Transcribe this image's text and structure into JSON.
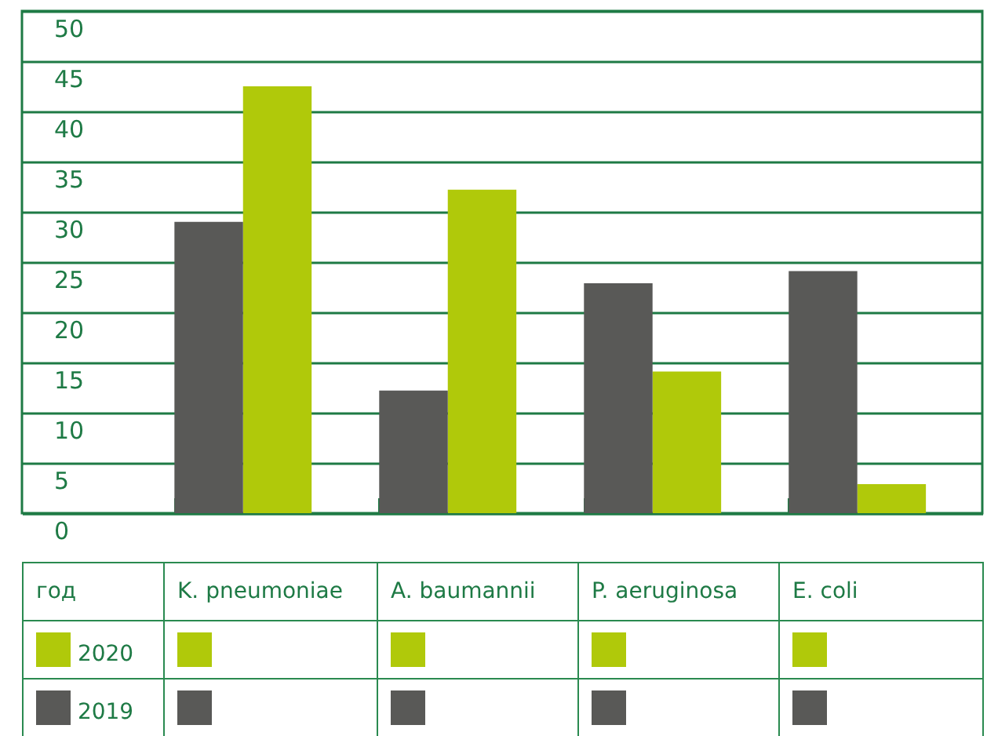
{
  "chart_data": {
    "type": "bar",
    "categories": [
      "K. pneumoniae",
      "A. baumannii",
      "P. aeruginosa",
      "E. coli"
    ],
    "series": [
      {
        "name": "2020",
        "color": "#b0c90a",
        "values": [
          42.5,
          32.2,
          14.1,
          2.9
        ]
      },
      {
        "name": "2019",
        "color": "#595957",
        "values": [
          29,
          12.2,
          22.9,
          24.1
        ]
      }
    ],
    "ylim": [
      0,
      50
    ],
    "yticks": [
      0,
      5,
      10,
      15,
      20,
      25,
      30,
      35,
      40,
      45,
      50
    ],
    "grid": "y",
    "legend": "bottom",
    "legend_title": "год"
  }
}
